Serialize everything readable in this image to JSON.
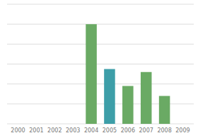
{
  "chart_data": {
    "type": "bar",
    "categories": [
      "2000",
      "2001",
      "2002",
      "2003",
      "2004",
      "2005",
      "2006",
      "2007",
      "2008",
      "2009"
    ],
    "values": [
      0,
      0,
      0,
      0,
      100,
      55,
      38,
      52,
      28,
      0
    ],
    "colors": [
      "#6aaa64",
      "#6aaa64",
      "#6aaa64",
      "#6aaa64",
      "#6aaa64",
      "#3d9ea8",
      "#6aaa64",
      "#6aaa64",
      "#6aaa64",
      "#6aaa64"
    ],
    "ylim": [
      0,
      120
    ],
    "yticks": [
      0,
      20,
      40,
      60,
      80,
      100,
      120
    ],
    "grid": true,
    "tick_labels": "x"
  }
}
